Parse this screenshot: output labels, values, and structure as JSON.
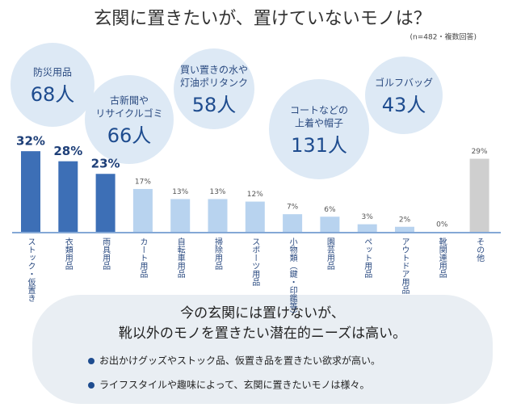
{
  "title": "玄関に置きたいが、置けていないモノは？",
  "note": "(n=482・複数回答)",
  "bubbles": [
    {
      "lines": [
        "防災用品"
      ],
      "count": "68人"
    },
    {
      "lines": [
        "古新聞や",
        "リサイクルゴミ"
      ],
      "count": "66人"
    },
    {
      "lines": [
        "買い置きの水や",
        "灯油ポリタンク"
      ],
      "count": "58人"
    },
    {
      "lines": [
        "コートなどの",
        "上着や帽子"
      ],
      "count": "131人"
    },
    {
      "lines": [
        "ゴルフバッグ"
      ],
      "count": "43人"
    }
  ],
  "chart_data": {
    "type": "bar",
    "categories": [
      "ストック・仮置き",
      "衣類用品",
      "雨具用品",
      "カート用品",
      "自転車用品",
      "掃除用品",
      "スポーツ用品",
      "小物類（鍵・印鑑等）",
      "園芸用品",
      "ペット用品",
      "アウトドア用品",
      "靴関連用品",
      "その他"
    ],
    "values": [
      32,
      28,
      23,
      17,
      13,
      13,
      12,
      7,
      6,
      3,
      2,
      0,
      29
    ],
    "value_labels": [
      "32%",
      "28%",
      "23%",
      "17%",
      "13%",
      "13%",
      "12%",
      "7%",
      "6%",
      "3%",
      "2%",
      "0%",
      "29%"
    ],
    "colors": [
      "#3d6fb6",
      "#3d6fb6",
      "#3d6fb6",
      "#b8d3ef",
      "#b8d3ef",
      "#b8d3ef",
      "#b8d3ef",
      "#b8d3ef",
      "#b8d3ef",
      "#b8d3ef",
      "#b8d3ef",
      "#b8d3ef",
      "#cfcfcf"
    ]
  },
  "summary": {
    "heading": [
      "今の玄関には置けないが、",
      "靴以外のモノを置きたい潜在的ニーズは高い。"
    ],
    "bullets": [
      "お出かけグッズやストック品、仮置き品を置きたい欲求が高い。",
      "ライフスタイルや趣味によって、玄関に置きたいモノは様々。"
    ]
  }
}
